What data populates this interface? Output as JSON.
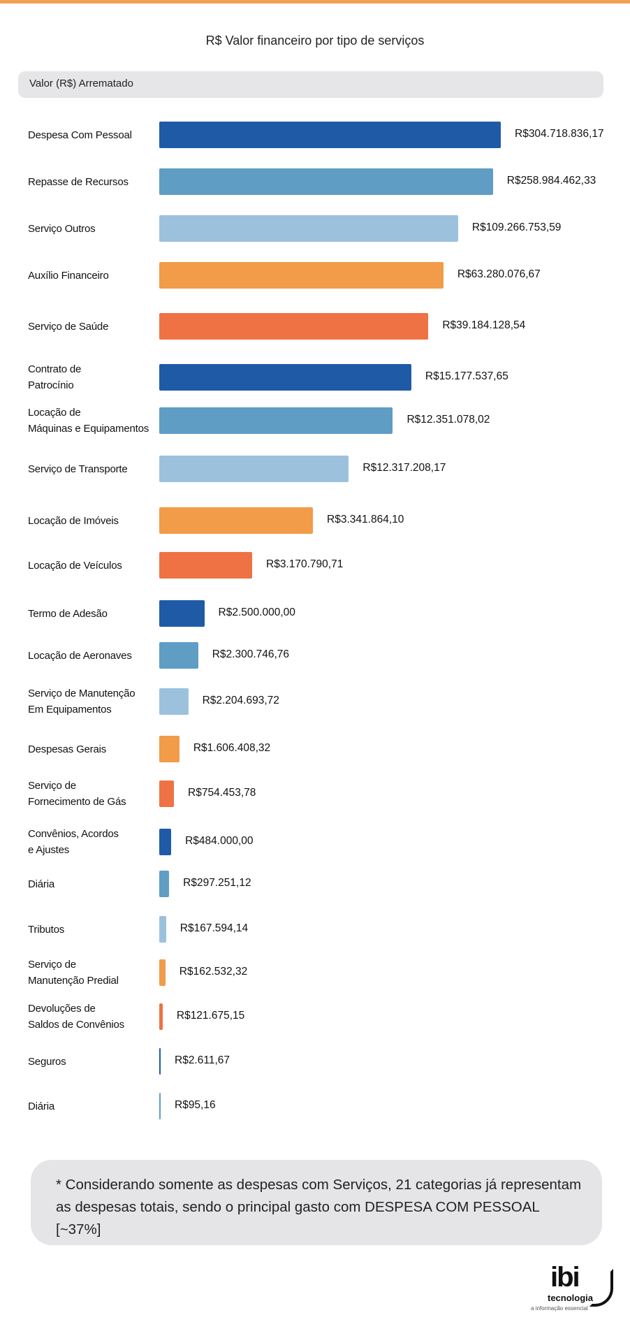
{
  "title": "R$ Valor financeiro por tipo de serviços",
  "header": {
    "label": "Valor (R$) Arrematado"
  },
  "chart_data": {
    "type": "bar",
    "orientation": "horizontal",
    "title": "R$ Valor financeiro por tipo de serviços",
    "ylabel": "Valor (R$) Arrematado",
    "categories": [
      "Despesa Com Pessoal",
      "Repasse de Recursos",
      "Serviço Outros",
      "Auxílio Financeiro",
      "Serviço de Saúde",
      "Contrato de\nPatrocínio",
      "Locação de\nMáquinas e Equipamentos",
      "Serviço de Transporte",
      "Locação de Imóveis",
      "Locação de Veículos",
      "Termo de Adesão",
      "Locação de Aeronaves",
      "Serviço de Manutenção\nEm Equipamentos",
      "Despesas Gerais",
      "Serviço de\nFornecimento de Gás",
      "Convênios, Acordos\ne Ajustes",
      "Diária",
      "Tributos",
      "Serviço de\nManutenção Predial",
      "Devoluções de\nSaldos de Convênios",
      "Seguros",
      "Diária"
    ],
    "values": [
      304718836.17,
      258984462.33,
      109266753.59,
      63280076.67,
      39184128.54,
      15177537.65,
      12351078.02,
      12317208.17,
      3341864.1,
      3170790.71,
      2500000.0,
      2300746.76,
      2204693.72,
      1606408.32,
      754453.78,
      484000.0,
      297251.12,
      167594.14,
      162532.32,
      121675.15,
      2611.67,
      95.16
    ],
    "value_labels": [
      "R$304.718.836,17",
      "R$258.984.462,33",
      "R$109.266.753,59",
      "R$63.280.076,67",
      "R$39.184.128,54",
      "R$15.177.537,65",
      "R$12.351.078,02",
      "R$12.317.208,17",
      "R$3.341.864,10",
      "R$3.170.790,71",
      "R$2.500.000,00",
      "R$2.300.746,76",
      "R$2.204.693,72",
      "R$1.606.408,32",
      "R$754.453,78",
      "R$484.000,00",
      "R$297.251,12",
      "R$167.594,14",
      "R$162.532,32",
      "R$121.675,15",
      "R$2.611,67",
      "R$95,16"
    ],
    "bar_length_percent": [
      100,
      97.7,
      87.5,
      83.2,
      78.8,
      73.8,
      68.4,
      55.5,
      45.0,
      27.2,
      13.2,
      11.4,
      8.5,
      5.9,
      4.3,
      3.5,
      2.9,
      2.0,
      1.8,
      1.0,
      0.4,
      0.2
    ],
    "palette": [
      "#1f5aa6",
      "#5f9dc4",
      "#9cc1dd",
      "#f29b49",
      "#ef7245"
    ],
    "grid": false
  },
  "note": {
    "text": "* Considerando somente as despesas com Serviços, 21 categorias já representam as despesas totais, sendo o principal gasto com DESPESA COM PESSOAL [~37%]"
  },
  "logo": {
    "brand": "ibi",
    "line1": "tecnologia",
    "tagline": "a informação essencial"
  }
}
